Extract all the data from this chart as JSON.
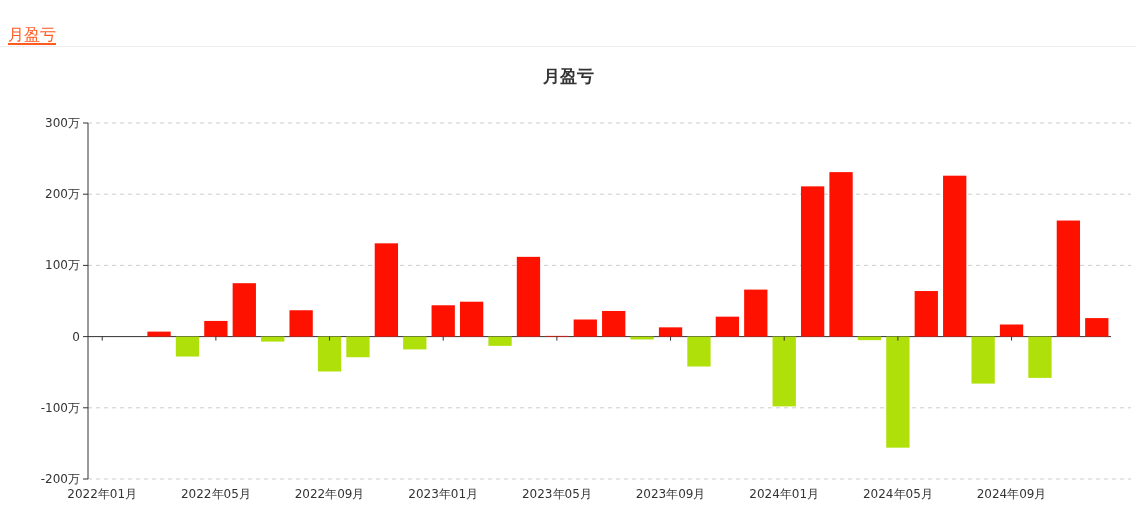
{
  "chart_data": {
    "type": "bar",
    "title": "月盈亏",
    "annotations": [
      "月盈亏"
    ],
    "categories": [
      "2022年01月",
      null,
      null,
      null,
      "2022年05月",
      null,
      null,
      null,
      "2022年09月",
      null,
      null,
      null,
      "2023年01月",
      null,
      null,
      null,
      "2023年05月",
      null,
      null,
      null,
      "2023年09月",
      null,
      null,
      null,
      "2024年01月",
      null,
      null,
      null,
      "2024年05月",
      null,
      null,
      null,
      "2024年09月",
      null,
      null,
      null
    ],
    "values": [
      null,
      null,
      7,
      -28,
      22,
      75,
      -7,
      37,
      -49,
      -29,
      131,
      -18,
      44,
      49,
      -13,
      112,
      1,
      24,
      36,
      -4,
      13,
      -42,
      28,
      66,
      -98,
      211,
      231,
      -5,
      -156,
      64,
      226,
      -66,
      17,
      -58,
      163,
      26
    ],
    "colors": [
      null,
      null,
      "#ff1100",
      "#b0e00a",
      "#ff1100",
      "#ff1100",
      "#b0e00a",
      "#ff1100",
      "#b0e00a",
      "#b0e00a",
      "#ff1100",
      "#b0e00a",
      "#ff1100",
      "#ff1100",
      "#b0e00a",
      "#ff1100",
      "#ff1100",
      "#ff1100",
      "#ff1100",
      "#b0e00a",
      "#ff1100",
      "#b0e00a",
      "#ff1100",
      "#ff1100",
      "#b0e00a",
      "#ff1100",
      "#ff1100",
      "#b0e00a",
      "#b0e00a",
      "#ff1100",
      "#ff1100",
      "#b0e00a",
      "#ff1100",
      "#b0e00a",
      "#ff1100",
      "#ff1100"
    ],
    "ylim": [
      -200,
      300
    ],
    "yticks": [
      {
        "value": -200,
        "label": "-200万"
      },
      {
        "value": -100,
        "label": "-100万"
      },
      0,
      {
        "value": 100,
        "label": "100万"
      },
      {
        "value": 200,
        "label": "200万"
      },
      {
        "value": 300,
        "label": "300万"
      }
    ],
    "grid": "y"
  }
}
